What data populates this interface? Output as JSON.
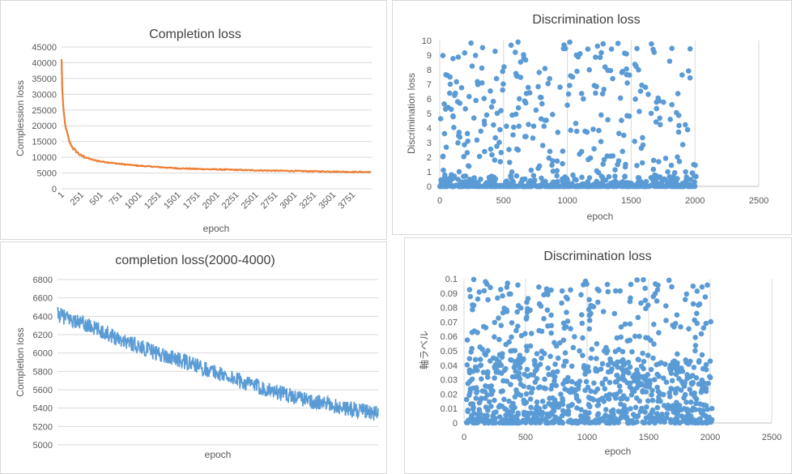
{
  "chart_data": [
    {
      "type": "line",
      "title": "Completion loss",
      "xlabel": "epoch",
      "ylabel": "Complession loss",
      "xlim": [
        1,
        4000
      ],
      "ylim": [
        0,
        45000
      ],
      "y_ticks": [
        0,
        5000,
        10000,
        15000,
        20000,
        25000,
        30000,
        35000,
        40000,
        45000
      ],
      "x_tick_labels": [
        "1",
        "251",
        "501",
        "751",
        "1001",
        "1251",
        "1501",
        "1751",
        "2001",
        "2251",
        "2501",
        "2751",
        "3001",
        "3251",
        "3501",
        "3751"
      ],
      "series": [
        {
          "color": "#ED7D31",
          "x": [
            1,
            10,
            25,
            50,
            100,
            150,
            251,
            400,
            501,
            751,
            1001,
            1251,
            1501,
            1751,
            2001,
            2251,
            2501,
            2751,
            3001,
            3251,
            3501,
            3751,
            3990
          ],
          "y": [
            41000,
            32000,
            25000,
            20000,
            15000,
            12800,
            10500,
            9200,
            8700,
            7900,
            7300,
            6900,
            6500,
            6300,
            6150,
            6000,
            5850,
            5750,
            5650,
            5550,
            5450,
            5350,
            5300
          ]
        }
      ],
      "grid": "horizontal",
      "legend": "none"
    },
    {
      "type": "scatter",
      "title": "Discrimination loss",
      "xlabel": "epoch",
      "ylabel": "Discrimination loss",
      "xlim": [
        0,
        2500
      ],
      "ylim": [
        0,
        10
      ],
      "x_ticks": [
        0,
        500,
        1000,
        1500,
        2000,
        2500
      ],
      "y_ticks": [
        0,
        1,
        2,
        3,
        4,
        5,
        6,
        7,
        8,
        9,
        10
      ],
      "series": [
        {
          "color": "#5B9BD5",
          "x_range": [
            0,
            2000
          ],
          "points": 900,
          "note_shape": "dense near 0, scattered up to 10"
        }
      ],
      "grid": "vertical",
      "legend": "none"
    },
    {
      "type": "line",
      "title": "completion loss(2000-4000)",
      "xlabel": "epoch",
      "ylabel": "Completion loss",
      "xlim": [
        2000,
        4000
      ],
      "ylim": [
        5000,
        6800
      ],
      "y_ticks": [
        5000,
        5200,
        5400,
        5600,
        5800,
        6000,
        6200,
        6400,
        6600,
        6800
      ],
      "series": [
        {
          "color": "#5B9BD5",
          "x": [
            2000,
            2200,
            2400,
            2600,
            2800,
            3000,
            3200,
            3400,
            3600,
            3800,
            4000
          ],
          "y": [
            6420,
            6290,
            6150,
            6010,
            5900,
            5780,
            5660,
            5560,
            5470,
            5400,
            5340
          ]
        }
      ],
      "grid": "horizontal",
      "legend": "none"
    },
    {
      "type": "scatter",
      "title": "Discrimination loss",
      "xlabel": "epoch",
      "ylabel": "軸ラベル",
      "xlim": [
        0,
        2500
      ],
      "ylim": [
        0,
        0.1
      ],
      "x_ticks": [
        0,
        500,
        1000,
        1500,
        2000,
        2500
      ],
      "y_ticks": [
        0,
        0.01,
        0.02,
        0.03,
        0.04,
        0.05,
        0.06,
        0.07,
        0.08,
        0.09,
        0.1
      ],
      "series": [
        {
          "color": "#5B9BD5",
          "x_range": [
            0,
            2000
          ],
          "points": 1100,
          "note_shape": "dense below 0.03, sparse up to 0.1"
        }
      ],
      "grid": "vertical",
      "legend": "none"
    }
  ]
}
